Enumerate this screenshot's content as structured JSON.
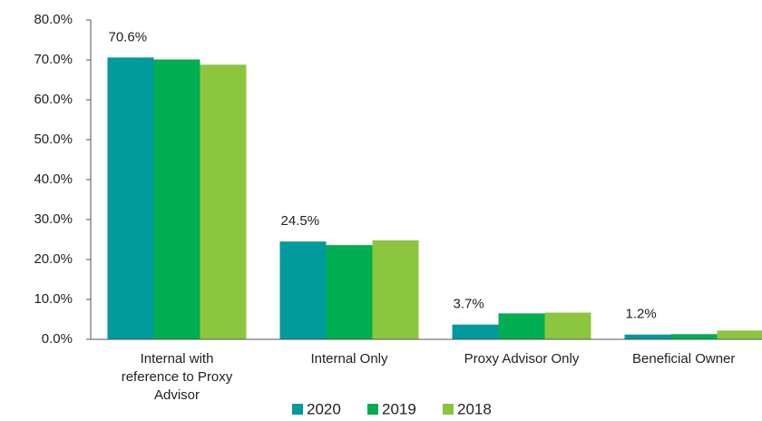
{
  "chart_data": {
    "type": "bar",
    "categories": [
      "Internal with reference to Proxy Advisor",
      "Internal Only",
      "Proxy Advisor Only",
      "Beneficial Owner"
    ],
    "series": [
      {
        "name": "2020",
        "color": "#00999c",
        "values": [
          70.6,
          24.5,
          3.7,
          1.2
        ],
        "value_labels": [
          "70.6%",
          "24.5%",
          "3.7%",
          "1.2%"
        ]
      },
      {
        "name": "2019",
        "color": "#00ad50",
        "values": [
          70.1,
          23.6,
          6.5,
          1.3
        ]
      },
      {
        "name": "2018",
        "color": "#8cc63f",
        "values": [
          68.8,
          24.8,
          6.7,
          2.2
        ]
      }
    ],
    "ylim": [
      0,
      80
    ],
    "yticks": [
      {
        "value": 0,
        "label": "0.0%"
      },
      {
        "value": 10,
        "label": "10.0%"
      },
      {
        "value": 20,
        "label": "20.0%"
      },
      {
        "value": 30,
        "label": "30.0%"
      },
      {
        "value": 40,
        "label": "40.0%"
      },
      {
        "value": 50,
        "label": "50.0%"
      },
      {
        "value": 60,
        "label": "60.0%"
      },
      {
        "value": 70,
        "label": "70.0%"
      },
      {
        "value": 80,
        "label": "80.0%"
      }
    ],
    "legend": "bottom"
  }
}
